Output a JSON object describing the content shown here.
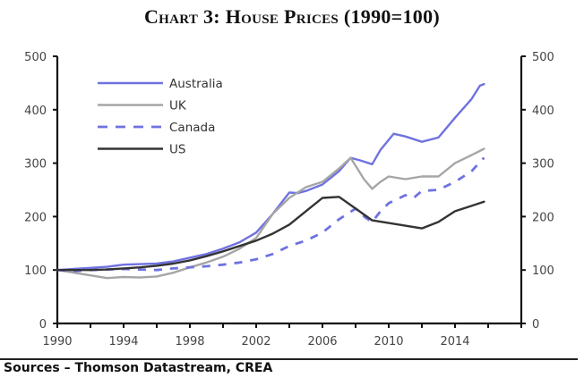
{
  "chart_data": {
    "type": "line",
    "title": "Chart 3: House Prices (1990=100)",
    "xlabel": "",
    "ylabel": "",
    "xlim": [
      1990,
      2018
    ],
    "ylim": [
      0,
      500
    ],
    "x_ticks": [
      1990,
      1994,
      1998,
      2002,
      2006,
      2010,
      2014
    ],
    "x_minor_tick_step": 2,
    "y_ticks": [
      0,
      100,
      200,
      300,
      400,
      500
    ],
    "y_ticks_right": [
      0,
      100,
      200,
      300,
      400,
      500
    ],
    "grid": false,
    "legend_position": "top-left",
    "series": [
      {
        "name": "Australia",
        "color": "#6f72e0",
        "style": "solid",
        "points": [
          [
            1990,
            100
          ],
          [
            1991,
            102
          ],
          [
            1992,
            104
          ],
          [
            1993,
            106
          ],
          [
            1994,
            110
          ],
          [
            1995,
            111
          ],
          [
            1996,
            112
          ],
          [
            1997,
            116
          ],
          [
            1998,
            123
          ],
          [
            1999,
            130
          ],
          [
            2000,
            140
          ],
          [
            2001,
            152
          ],
          [
            2002,
            170
          ],
          [
            2003,
            205
          ],
          [
            2004,
            245
          ],
          [
            2004.5,
            244
          ],
          [
            2005,
            248
          ],
          [
            2006,
            260
          ],
          [
            2007,
            285
          ],
          [
            2007.7,
            310
          ],
          [
            2008.3,
            305
          ],
          [
            2009,
            298
          ],
          [
            2009.5,
            325
          ],
          [
            2010.3,
            355
          ],
          [
            2011,
            350
          ],
          [
            2012,
            340
          ],
          [
            2013,
            348
          ],
          [
            2014,
            385
          ],
          [
            2015,
            420
          ],
          [
            2015.5,
            445
          ],
          [
            2015.75,
            448
          ]
        ]
      },
      {
        "name": "UK",
        "color": "#a6a6a6",
        "style": "solid",
        "points": [
          [
            1990,
            100
          ],
          [
            1991,
            95
          ],
          [
            1992,
            90
          ],
          [
            1993,
            85
          ],
          [
            1994,
            87
          ],
          [
            1995,
            86
          ],
          [
            1996,
            88
          ],
          [
            1997,
            95
          ],
          [
            1998,
            105
          ],
          [
            1999,
            114
          ],
          [
            2000,
            125
          ],
          [
            2001,
            140
          ],
          [
            2002,
            160
          ],
          [
            2003,
            205
          ],
          [
            2004,
            235
          ],
          [
            2005,
            255
          ],
          [
            2006,
            265
          ],
          [
            2007,
            290
          ],
          [
            2007.7,
            310
          ],
          [
            2008.5,
            270
          ],
          [
            2009,
            252
          ],
          [
            2009.5,
            265
          ],
          [
            2010,
            275
          ],
          [
            2011,
            270
          ],
          [
            2012,
            275
          ],
          [
            2013,
            275
          ],
          [
            2014,
            300
          ],
          [
            2015,
            315
          ],
          [
            2015.75,
            327
          ]
        ]
      },
      {
        "name": "Canada",
        "color": "#6f72e0",
        "style": "dashed",
        "points": [
          [
            1990,
            100
          ],
          [
            1991,
            98
          ],
          [
            1992,
            100
          ],
          [
            1993,
            101
          ],
          [
            1994,
            102
          ],
          [
            1995,
            101
          ],
          [
            1996,
            100
          ],
          [
            1997,
            103
          ],
          [
            1998,
            105
          ],
          [
            1999,
            107
          ],
          [
            2000,
            110
          ],
          [
            2001,
            114
          ],
          [
            2002,
            120
          ],
          [
            2003,
            130
          ],
          [
            2004,
            145
          ],
          [
            2005,
            155
          ],
          [
            2006,
            170
          ],
          [
            2007,
            195
          ],
          [
            2008,
            215
          ],
          [
            2008.6,
            198
          ],
          [
            2009,
            190
          ],
          [
            2009.5,
            210
          ],
          [
            2010,
            225
          ],
          [
            2011,
            240
          ],
          [
            2011.5,
            235
          ],
          [
            2012,
            248
          ],
          [
            2013,
            250
          ],
          [
            2014,
            265
          ],
          [
            2015,
            285
          ],
          [
            2015.75,
            310
          ]
        ]
      },
      {
        "name": "US",
        "color": "#333333",
        "style": "solid",
        "points": [
          [
            1990,
            100
          ],
          [
            1991,
            100
          ],
          [
            1992,
            100
          ],
          [
            1993,
            101
          ],
          [
            1994,
            103
          ],
          [
            1995,
            105
          ],
          [
            1996,
            108
          ],
          [
            1997,
            112
          ],
          [
            1998,
            118
          ],
          [
            1999,
            126
          ],
          [
            2000,
            135
          ],
          [
            2001,
            145
          ],
          [
            2002,
            155
          ],
          [
            2003,
            168
          ],
          [
            2004,
            185
          ],
          [
            2005,
            210
          ],
          [
            2006,
            235
          ],
          [
            2007,
            237
          ],
          [
            2008,
            215
          ],
          [
            2009,
            193
          ],
          [
            2010,
            188
          ],
          [
            2011,
            183
          ],
          [
            2012,
            178
          ],
          [
            2013,
            190
          ],
          [
            2014,
            210
          ],
          [
            2015,
            220
          ],
          [
            2015.75,
            228
          ]
        ]
      }
    ]
  },
  "source_note": "Sources – Thomson Datastream, CREA"
}
